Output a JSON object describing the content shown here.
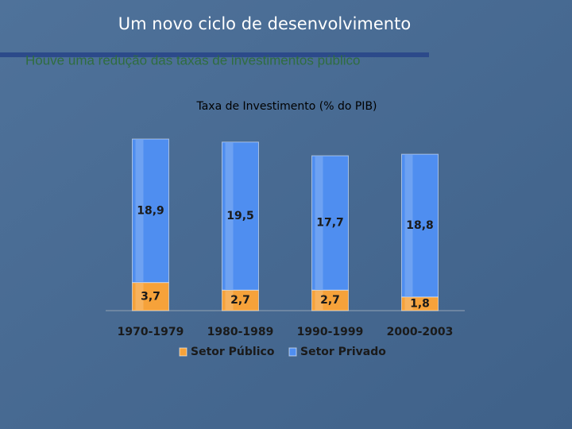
{
  "slide": {
    "title": "Um novo ciclo de desenvolvimento",
    "subtitle": "Houve uma redução das taxas de investimentos público"
  },
  "chart_data": {
    "type": "stacked_bar",
    "title": "Taxa de Investimento (% do PIB)",
    "categories": [
      "1970-1979",
      "1980-1989",
      "1990-1999",
      "2000-2003"
    ],
    "series": [
      {
        "name": "Setor Público",
        "color": "#f6a23a",
        "values": [
          3.7,
          2.7,
          2.7,
          1.8
        ],
        "value_labels": [
          "3,7",
          "2,7",
          "2,7",
          "1,8"
        ]
      },
      {
        "name": "Setor Privado",
        "color": "#4f8ef0",
        "values": [
          18.9,
          19.5,
          17.7,
          18.8
        ],
        "value_labels": [
          "18,9",
          "19,5",
          "17,7",
          "18,8"
        ]
      }
    ]
  }
}
